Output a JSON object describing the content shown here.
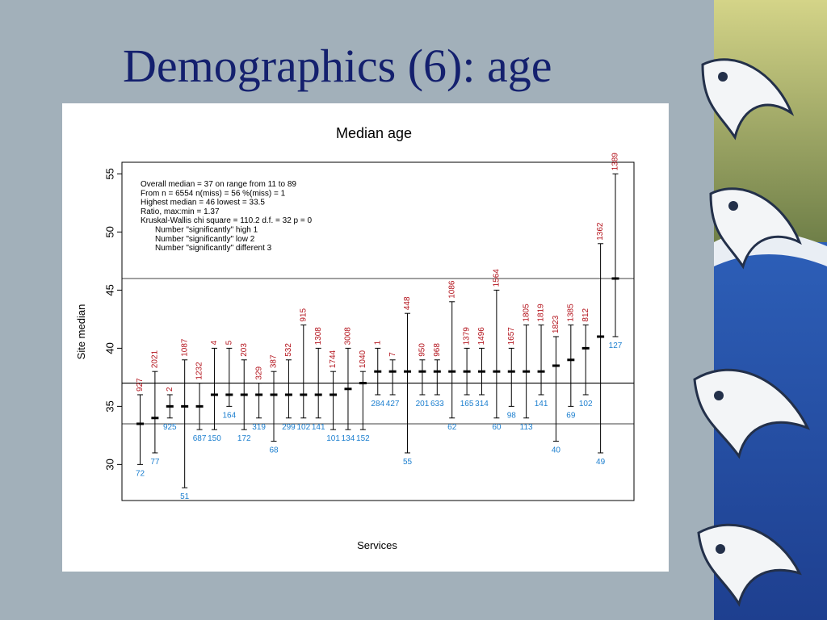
{
  "slide": {
    "title": "Demographics (6): age"
  },
  "colors": {
    "background": "#a2b0ba",
    "title": "#14206e",
    "upper_label": "#b3121b",
    "lower_label": "#1c7fcf",
    "wave_blue": "#2d5fb8"
  },
  "icons": [
    "decorative-wave-border"
  ],
  "chart_data": {
    "type": "scatter",
    "title": "Median age",
    "xlabel": "Services",
    "ylabel": "Site median",
    "ylim": [
      26.9,
      56.0
    ],
    "yticks": [
      30,
      35,
      40,
      45,
      50,
      55
    ],
    "grid": false,
    "reference_lines": [
      33.5,
      37,
      46
    ],
    "annotations": [
      "Overall median = 37 on range from 11 to 89",
      "From n = 6554 n(miss) = 56  %(miss) = 1",
      "Highest median = 46 lowest = 33.5",
      "Ratio, max:min = 1.37",
      "Kruskal-Wallis chi square =   110.2  d.f. =  32  p =   0",
      "Number \"significantly\" high 1",
      "Number \"significantly\" low 2",
      "Number \"significantly\" different 3"
    ],
    "series": [
      {
        "median": 33.5,
        "low": 30,
        "high": 36,
        "n_upper": "927",
        "n_lower": "72"
      },
      {
        "median": 34,
        "low": 31,
        "high": 38,
        "n_upper": "2021",
        "n_lower": "77"
      },
      {
        "median": 35,
        "low": 34,
        "high": 36,
        "n_upper": "2",
        "n_lower": "925"
      },
      {
        "median": 35,
        "low": 28,
        "high": 39,
        "n_upper": "1087",
        "n_lower": "51"
      },
      {
        "median": 35,
        "low": 33,
        "high": 37,
        "n_upper": "1232",
        "n_lower": "687"
      },
      {
        "median": 36,
        "low": 33,
        "high": 40,
        "n_upper": "4",
        "n_lower": "150"
      },
      {
        "median": 36,
        "low": 35,
        "high": 40,
        "n_upper": "5",
        "n_lower": "164"
      },
      {
        "median": 36,
        "low": 33,
        "high": 39,
        "n_upper": "203",
        "n_lower": "172"
      },
      {
        "median": 36,
        "low": 34,
        "high": 37,
        "n_upper": "329",
        "n_lower": "319"
      },
      {
        "median": 36,
        "low": 32,
        "high": 38,
        "n_upper": "387",
        "n_lower": "68"
      },
      {
        "median": 36,
        "low": 34,
        "high": 39,
        "n_upper": "532",
        "n_lower": "299"
      },
      {
        "median": 36,
        "low": 34,
        "high": 42,
        "n_upper": "915",
        "n_lower": "102"
      },
      {
        "median": 36,
        "low": 34,
        "high": 40,
        "n_upper": "1308",
        "n_lower": "141"
      },
      {
        "median": 36,
        "low": 33,
        "high": 38,
        "n_upper": "1744",
        "n_lower": "101"
      },
      {
        "median": 36.5,
        "low": 33,
        "high": 40,
        "n_upper": "3008",
        "n_lower": "134"
      },
      {
        "median": 37,
        "low": 33,
        "high": 38,
        "n_upper": "1040",
        "n_lower": "152"
      },
      {
        "median": 38,
        "low": 36,
        "high": 40,
        "n_upper": "1",
        "n_lower": "284"
      },
      {
        "median": 38,
        "low": 36,
        "high": 39,
        "n_upper": "7",
        "n_lower": "427"
      },
      {
        "median": 38,
        "low": 31,
        "high": 43,
        "n_upper": "448",
        "n_lower": "55"
      },
      {
        "median": 38,
        "low": 36,
        "high": 39,
        "n_upper": "950",
        "n_lower": "201"
      },
      {
        "median": 38,
        "low": 36,
        "high": 39,
        "n_upper": "968",
        "n_lower": "633"
      },
      {
        "median": 38,
        "low": 34,
        "high": 44,
        "n_upper": "1086",
        "n_lower": "62"
      },
      {
        "median": 38,
        "low": 36,
        "high": 40,
        "n_upper": "1379",
        "n_lower": "165"
      },
      {
        "median": 38,
        "low": 36,
        "high": 40,
        "n_upper": "1496",
        "n_lower": "314"
      },
      {
        "median": 38,
        "low": 34,
        "high": 45,
        "n_upper": "1564",
        "n_lower": "60"
      },
      {
        "median": 38,
        "low": 35,
        "high": 40,
        "n_upper": "1657",
        "n_lower": "98"
      },
      {
        "median": 38,
        "low": 34,
        "high": 42,
        "n_upper": "1805",
        "n_lower": "113"
      },
      {
        "median": 38,
        "low": 36,
        "high": 42,
        "n_upper": "1819",
        "n_lower": "141"
      },
      {
        "median": 38.5,
        "low": 32,
        "high": 41,
        "n_upper": "1823",
        "n_lower": "40"
      },
      {
        "median": 39,
        "low": 35,
        "high": 42,
        "n_upper": "1385",
        "n_lower": "69"
      },
      {
        "median": 40,
        "low": 36,
        "high": 42,
        "n_upper": "812",
        "n_lower": "102"
      },
      {
        "median": 41,
        "low": 31,
        "high": 49,
        "n_upper": "1362",
        "n_lower": "49"
      },
      {
        "median": 46,
        "low": 41,
        "high": 55,
        "n_upper": "1389",
        "n_lower": "127"
      }
    ]
  }
}
